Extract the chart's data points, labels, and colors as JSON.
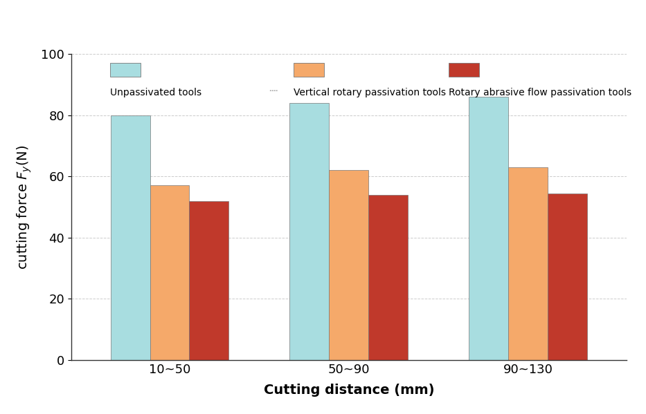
{
  "categories": [
    "10~50",
    "50~90",
    "90~130"
  ],
  "series": [
    {
      "name": "Unpassivated tools",
      "values": [
        80,
        84,
        86
      ],
      "color": "#a8dde0"
    },
    {
      "name": "Vertical rotary passivation tools",
      "values": [
        57,
        62,
        63
      ],
      "color": "#f5a96a"
    },
    {
      "name": "Rotary abrasive flow passivation tools",
      "values": [
        52,
        54,
        54.5
      ],
      "color": "#c0392b"
    }
  ],
  "xlabel": "Cutting distance (mm)",
  "ylabel": "cutting force $F_{y}$(N)",
  "ylim": [
    0,
    100
  ],
  "yticks": [
    0,
    20,
    40,
    60,
    80,
    100
  ],
  "bar_width": 0.22,
  "background_color": "#ffffff",
  "grid_color": "#cccccc",
  "spine_color": "#333333"
}
